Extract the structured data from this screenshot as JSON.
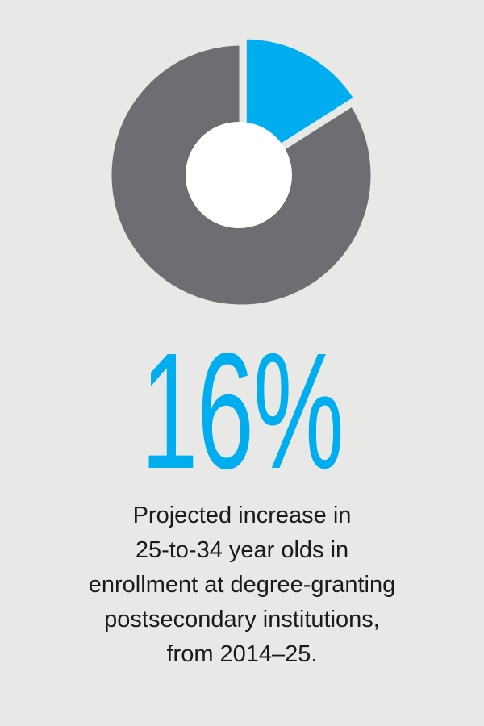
{
  "chart_data": {
    "type": "pie",
    "title": "",
    "slices": [
      {
        "label": "",
        "value": 16,
        "color": "#00aeef"
      },
      {
        "label": "",
        "value": 84,
        "color": "#6d6e71"
      }
    ],
    "donut": true,
    "exploded_slice": 0
  },
  "headline": {
    "value": "16%",
    "color": "#00aeef"
  },
  "caption": {
    "lines": [
      "Projected increase in",
      "25-to-34 year olds in",
      "enrollment at degree-granting",
      "postsecondary institutions,",
      "from 2014–25."
    ]
  },
  "colors": {
    "background": "#e8e8e6",
    "accent": "#00aeef",
    "dark": "#6d6e71",
    "text": "#1a1a1a"
  }
}
